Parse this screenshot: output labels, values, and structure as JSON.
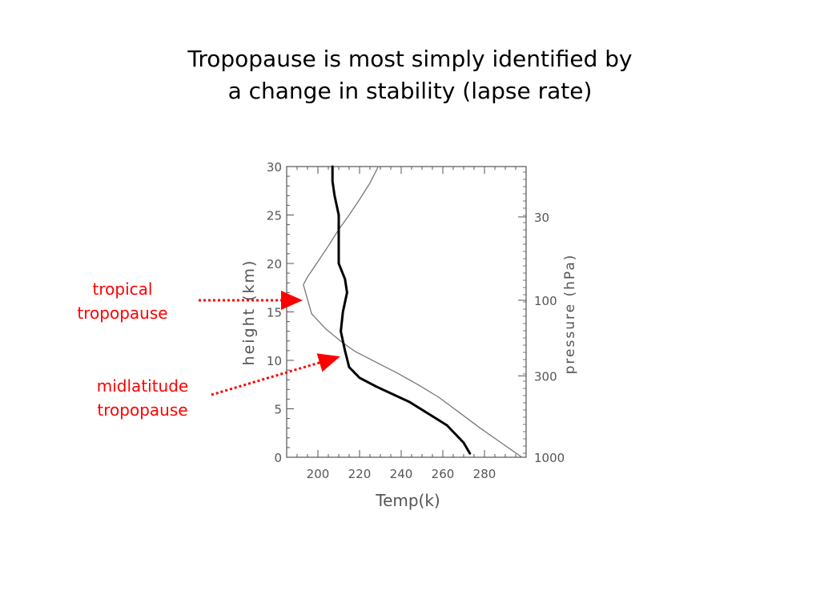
{
  "title": {
    "line1": "Tropopause is most simply identified by",
    "line2": "a change in stability (lapse rate)"
  },
  "annotations": {
    "tropical": {
      "line1": "tropical",
      "line2": "tropopause"
    },
    "midlatitude": {
      "line1": "midlatitude",
      "line2": "tropopause"
    }
  },
  "colors": {
    "annotation": "#ff0000",
    "axis": "#555555",
    "tropical_profile": "#777777",
    "midlatitude_profile": "#000000"
  },
  "chart_data": {
    "type": "line",
    "xlabel": "Temp(k)",
    "ylabel": "height  (km)",
    "y2label": "pressure (hPa)",
    "xlim": [
      185,
      300
    ],
    "ylim": [
      0,
      30
    ],
    "xticks": [
      200,
      220,
      240,
      260,
      280
    ],
    "yticks": [
      0,
      5,
      10,
      15,
      20,
      25,
      30
    ],
    "y2ticks": [
      {
        "label": "1000",
        "height_km": 0
      },
      {
        "label": "300",
        "height_km": 8.4
      },
      {
        "label": "100",
        "height_km": 16.2
      },
      {
        "label": "30",
        "height_km": 24.8
      }
    ],
    "grid": false,
    "series": [
      {
        "x": [
          298,
          288,
          278,
          268,
          258,
          248,
          238,
          228,
          218,
          212,
          204,
          197,
          193,
          195,
          200,
          205,
          210,
          215,
          220,
          225,
          229
        ],
        "y": [
          0,
          1.5,
          3,
          4.6,
          6.2,
          7.5,
          8.7,
          9.8,
          10.9,
          11.8,
          13.2,
          14.8,
          17.8,
          18.6,
          20.2,
          21.8,
          23.5,
          25,
          26.6,
          28.3,
          30
        ]
      },
      {
        "x": [
          273,
          270,
          266,
          262,
          256,
          250,
          244,
          236,
          228,
          220,
          215,
          213,
          211,
          212,
          214,
          213,
          210,
          210,
          210,
          208,
          207,
          207
        ],
        "y": [
          0.4,
          1.5,
          2.4,
          3.3,
          4.1,
          4.9,
          5.7,
          6.5,
          7.3,
          8.2,
          9.3,
          11,
          13,
          15,
          17,
          18.4,
          20,
          23,
          25,
          27,
          28.5,
          30
        ]
      }
    ]
  }
}
